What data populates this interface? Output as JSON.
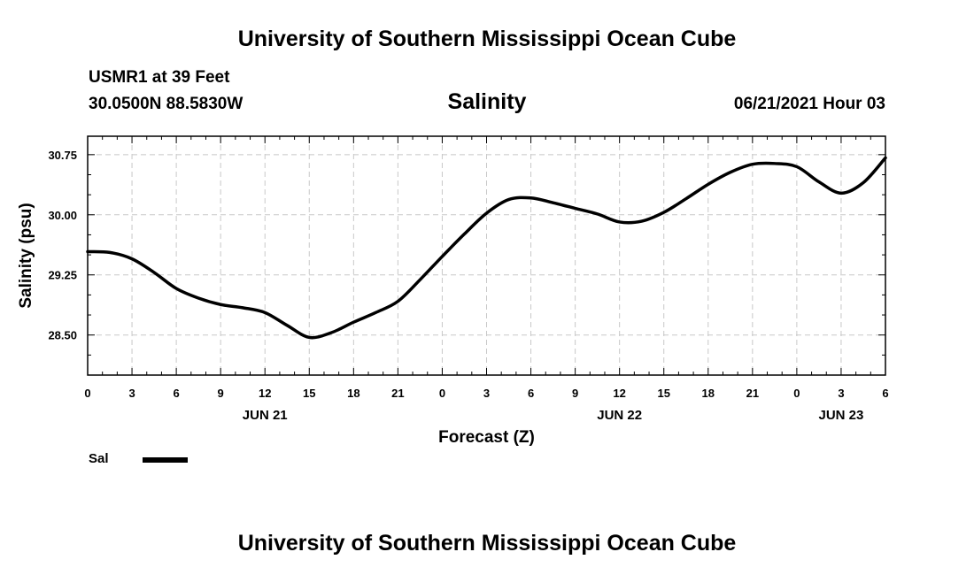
{
  "header": {
    "title": "University of Southern Mississippi Ocean Cube",
    "station": "USMR1 at 39 Feet",
    "coordinates": "30.0500N  88.5830W",
    "variable": "Salinity",
    "datetime": "06/21/2021 Hour 03"
  },
  "footer": {
    "title": "University of Southern Mississippi Ocean Cube"
  },
  "legend": {
    "label": "Sal",
    "color": "#000000"
  },
  "chart_data": {
    "type": "line",
    "title": "Salinity",
    "xlabel": "Forecast (Z)",
    "ylabel": "Salinity (psu)",
    "xlim": [
      0,
      54
    ],
    "ylim": [
      28.0,
      30.98
    ],
    "grid": true,
    "x_ticks": [
      0,
      3,
      6,
      9,
      12,
      15,
      18,
      21,
      24,
      27,
      30,
      33,
      36,
      39,
      42,
      45,
      48,
      51,
      54
    ],
    "x_tick_labels": [
      "0",
      "3",
      "6",
      "9",
      "12",
      "15",
      "18",
      "21",
      "0",
      "3",
      "6",
      "9",
      "12",
      "15",
      "18",
      "21",
      "0",
      "3",
      "6"
    ],
    "day_labels": [
      {
        "x": 12,
        "label": "JUN 21"
      },
      {
        "x": 36,
        "label": "JUN 22"
      },
      {
        "x": 51,
        "label": "JUN 23"
      }
    ],
    "y_ticks": [
      28.5,
      29.25,
      30.0,
      30.75
    ],
    "y_tick_labels": [
      "28.50",
      "29.25",
      "30.00",
      "30.75"
    ],
    "series": [
      {
        "name": "Sal",
        "color": "#000000",
        "x": [
          0,
          1.5,
          3,
          4.5,
          6,
          7.5,
          9,
          10.5,
          12,
          13.5,
          15,
          16.5,
          18,
          19.5,
          21,
          22.5,
          24,
          25.5,
          27,
          28.5,
          30,
          31.5,
          33,
          34.5,
          36,
          37.5,
          39,
          40.5,
          42,
          43.5,
          45,
          46.5,
          48,
          49.5,
          51,
          52.5,
          54
        ],
        "values": [
          29.54,
          29.53,
          29.45,
          29.28,
          29.08,
          28.96,
          28.88,
          28.84,
          28.78,
          28.62,
          28.47,
          28.53,
          28.66,
          28.78,
          28.92,
          29.19,
          29.48,
          29.76,
          30.02,
          30.19,
          30.21,
          30.15,
          30.08,
          30.01,
          29.91,
          29.92,
          30.03,
          30.2,
          30.38,
          30.53,
          30.63,
          30.64,
          30.6,
          30.41,
          30.27,
          30.4,
          30.71
        ]
      }
    ]
  }
}
